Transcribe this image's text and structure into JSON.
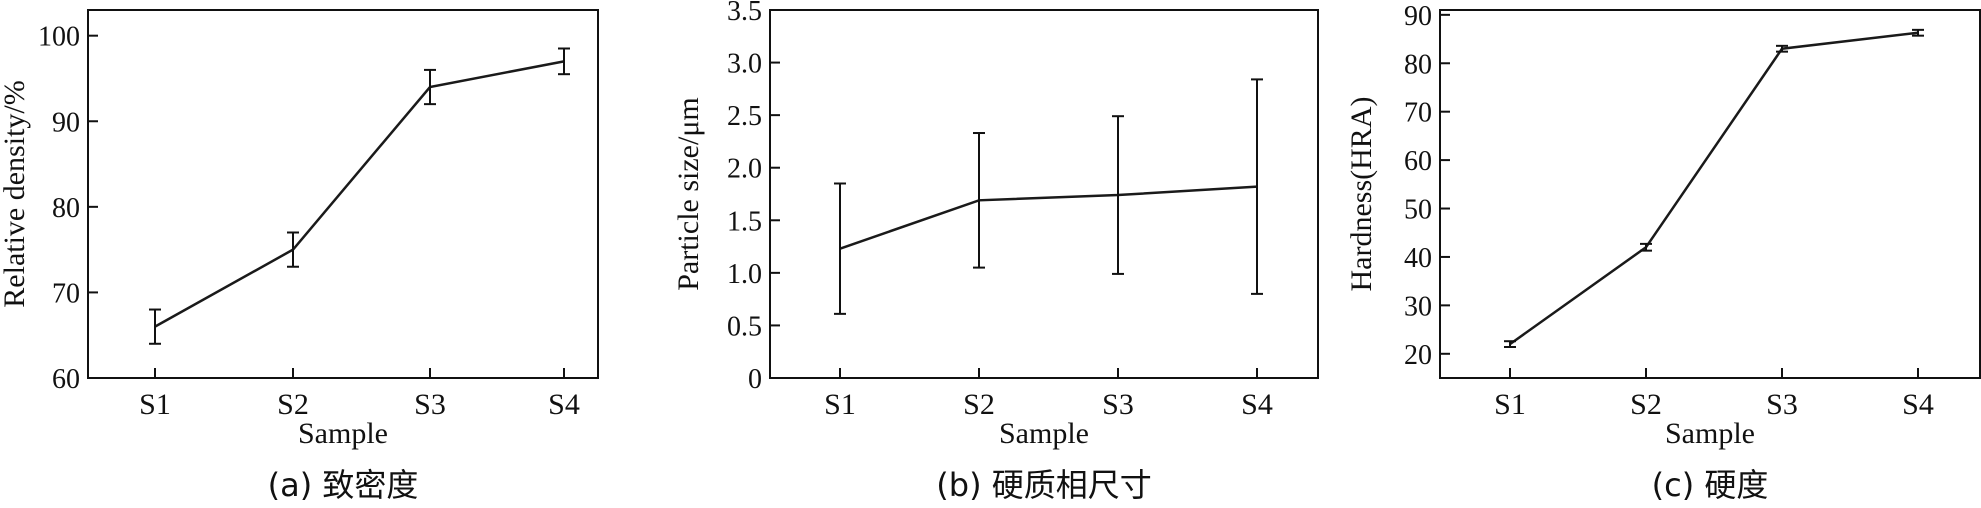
{
  "chart_data": [
    {
      "type": "line",
      "caption": "(a) 致密度",
      "xlabel": "Sample",
      "ylabel": "Relative density/%",
      "categories": [
        "S1",
        "S2",
        "S3",
        "S4"
      ],
      "series": [
        {
          "values": [
            66,
            75,
            94,
            97
          ],
          "errors": [
            2,
            2,
            2,
            1.5
          ]
        }
      ],
      "ylim": [
        60,
        103
      ],
      "yticks": [
        60,
        70,
        80,
        90,
        100
      ],
      "ytick_labels": [
        "60",
        "70",
        "80",
        "90",
        "100"
      ],
      "grid": false,
      "legend": "none",
      "line_color": "#1a1a1a"
    },
    {
      "type": "line",
      "caption": "(b) 硬质相尺寸",
      "xlabel": "Sample",
      "ylabel": "Particle size/μm",
      "categories": [
        "S1",
        "S2",
        "S3",
        "S4"
      ],
      "series": [
        {
          "values": [
            1.23,
            1.69,
            1.74,
            1.82
          ],
          "errors": [
            0.62,
            0.64,
            0.75,
            1.02
          ]
        }
      ],
      "ylim": [
        0,
        3.5
      ],
      "yticks": [
        0,
        0.5,
        1.0,
        1.5,
        2.0,
        2.5,
        3.0,
        3.5
      ],
      "ytick_labels": [
        "0",
        "0.5",
        "1.0",
        "1.5",
        "2.0",
        "2.5",
        "3.0",
        "3.5"
      ],
      "grid": false,
      "legend": "none",
      "line_color": "#1a1a1a"
    },
    {
      "type": "line",
      "caption": "(c) 硬度",
      "xlabel": "Sample",
      "ylabel": "Hardness(HRA)",
      "categories": [
        "S1",
        "S2",
        "S3",
        "S4"
      ],
      "series": [
        {
          "values": [
            22,
            42,
            83,
            86.3
          ],
          "errors": [
            0.6,
            0.7,
            0.6,
            0.6
          ]
        }
      ],
      "ylim": [
        15,
        91
      ],
      "yticks": [
        20,
        30,
        40,
        50,
        60,
        70,
        80,
        90
      ],
      "ytick_labels": [
        "20",
        "30",
        "40",
        "50",
        "60",
        "70",
        "80",
        "90"
      ],
      "grid": false,
      "legend": "none",
      "line_color": "#1a1a1a"
    }
  ]
}
